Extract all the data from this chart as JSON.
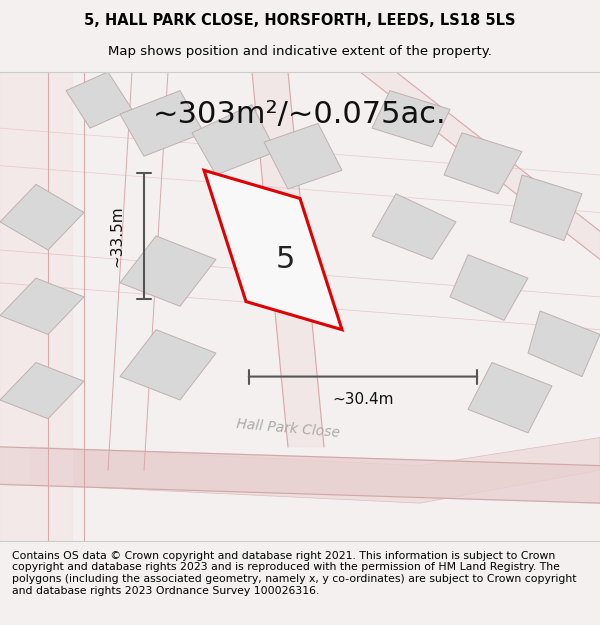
{
  "title_line1": "5, HALL PARK CLOSE, HORSFORTH, LEEDS, LS18 5LS",
  "title_line2": "Map shows position and indicative extent of the property.",
  "area_label": "~303m²/~0.075ac.",
  "width_label": "~30.4m",
  "height_label": "~33.5m",
  "property_number": "5",
  "footer_text": "Contains OS data © Crown copyright and database right 2021. This information is subject to Crown copyright and database rights 2023 and is reproduced with the permission of HM Land Registry. The polygons (including the associated geometry, namely x, y co-ordinates) are subject to Crown copyright and database rights 2023 Ordnance Survey 100026316.",
  "bg_color": "#f5f0f0",
  "map_bg": "#ffffff",
  "road_color_main": "#e8c8c8",
  "road_color_light": "#f0d8d8",
  "building_color": "#d8d8d8",
  "building_edge": "#c0b8b8",
  "plot_fill": "#f8f8f8",
  "plot_edge": "#e00000",
  "plot_edge_width": 2.2,
  "dim_line_color": "#555555",
  "street_label_color": "#aaaaaa",
  "title_fontsize": 10.5,
  "subtitle_fontsize": 9.5,
  "area_fontsize": 22,
  "dim_fontsize": 11,
  "property_num_fontsize": 22,
  "footer_fontsize": 7.8
}
